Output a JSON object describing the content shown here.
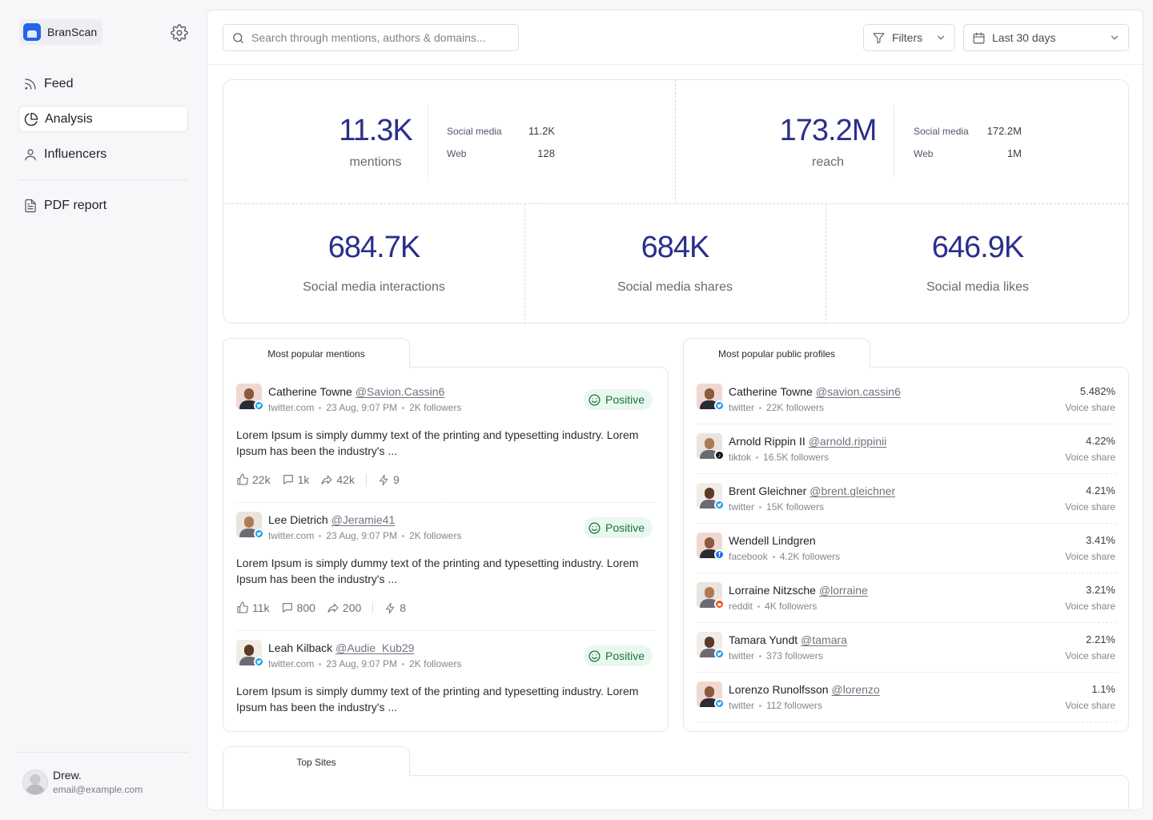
{
  "app": {
    "name": "BranScan"
  },
  "nav": {
    "feed": "Feed",
    "analysis": "Analysis",
    "influencers": "Influencers",
    "pdf": "PDF report"
  },
  "user": {
    "name": "Drew.",
    "email": "email@example.com"
  },
  "search": {
    "placeholder": "Search through mentions, authors & domains..."
  },
  "filters": {
    "label": "Filters"
  },
  "date_range": {
    "label": "Last 30 days"
  },
  "stats": {
    "mentions": {
      "value": "11.3K",
      "label": "mentions",
      "social_label": "Social media",
      "social_value": "11.2K",
      "web_label": "Web",
      "web_value": "128"
    },
    "reach": {
      "value": "173.2M",
      "label": "reach",
      "social_label": "Social media",
      "social_value": "172.2M",
      "web_label": "Web",
      "web_value": "1M"
    },
    "interactions": {
      "value": "684.7K",
      "label": "Social media interactions"
    },
    "shares": {
      "value": "684K",
      "label": "Social media shares"
    },
    "likes": {
      "value": "646.9K",
      "label": "Social media likes"
    }
  },
  "mentions_panel": {
    "tab": "Most popular mentions",
    "items": [
      {
        "name": "Catherine Towne",
        "handle": "@Savion.Cassin6",
        "source": "twitter.com",
        "date": "23 Aug, 9:07 PM",
        "followers": "2K followers",
        "sentiment": "Positive",
        "text": "Lorem Ipsum is simply dummy text of the printing and typesetting industry. Lorem Ipsum has been the industry's ...",
        "likes": "22k",
        "comments": "1k",
        "shares": "42k",
        "score": "9",
        "platform": "twitter"
      },
      {
        "name": "Lee Dietrich",
        "handle": "@Jeramie41",
        "source": "twitter.com",
        "date": "23 Aug, 9:07 PM",
        "followers": "2K followers",
        "sentiment": "Positive",
        "text": "Lorem Ipsum is simply dummy text of the printing and typesetting industry. Lorem Ipsum has been the industry's ...",
        "likes": "11k",
        "comments": "800",
        "shares": "200",
        "score": "8",
        "platform": "twitter"
      },
      {
        "name": "Leah Kilback",
        "handle": "@Audie_Kub29",
        "source": "twitter.com",
        "date": "23 Aug, 9:07 PM",
        "followers": "2K followers",
        "sentiment": "Positive",
        "text": "Lorem Ipsum is simply dummy text of the printing and typesetting industry. Lorem Ipsum has been the industry's ...",
        "likes": "",
        "comments": "",
        "shares": "",
        "score": "",
        "platform": "twitter"
      }
    ]
  },
  "profiles_panel": {
    "tab": "Most popular public profiles",
    "items": [
      {
        "name": "Catherine Towne",
        "handle": "@savion.cassin6",
        "platform": "twitter",
        "followers": "22K followers",
        "share": "5.482%",
        "share_label": "Voice share"
      },
      {
        "name": "Arnold Rippin II",
        "handle": "@arnold.rippinii",
        "platform": "tiktok",
        "followers": "16.5K followers",
        "share": "4.22%",
        "share_label": "Voice share"
      },
      {
        "name": "Brent Gleichner",
        "handle": "@brent.gleichner",
        "platform": "twitter",
        "followers": "15K followers",
        "share": "4.21%",
        "share_label": "Voice share"
      },
      {
        "name": "Wendell Lindgren",
        "handle": "",
        "platform": "facebook",
        "followers": "4.2K followers",
        "share": "3.41%",
        "share_label": "Voice share"
      },
      {
        "name": "Lorraine Nitzsche",
        "handle": "@lorraine",
        "platform": "reddit",
        "followers": "4K followers",
        "share": "3.21%",
        "share_label": "Voice share"
      },
      {
        "name": "Tamara Yundt",
        "handle": "@tamara",
        "platform": "twitter",
        "followers": "373 followers",
        "share": "2.21%",
        "share_label": "Voice share"
      },
      {
        "name": "Lorenzo Runolfsson",
        "handle": "@lorenzo",
        "platform": "twitter",
        "followers": "112 followers",
        "share": "1.1%",
        "share_label": "Voice share"
      }
    ]
  },
  "top_sites": {
    "tab": "Top Sites"
  },
  "colors": {
    "accent": "#2b2f8a",
    "positive_bg": "#e9f8ef",
    "positive_text": "#17733f",
    "brand": "#2563eb",
    "twitter": "#1d9bf0",
    "facebook": "#1877f2",
    "reddit": "#ff4500",
    "tiktok": "#111111"
  },
  "icons": [
    "gear-icon",
    "feed-icon",
    "pie-chart-icon",
    "user-icon",
    "document-icon",
    "search-icon",
    "filter-icon",
    "calendar-icon",
    "chevron-down-icon",
    "thumbs-up-icon",
    "comment-icon",
    "share-icon",
    "bolt-icon",
    "smile-icon"
  ]
}
